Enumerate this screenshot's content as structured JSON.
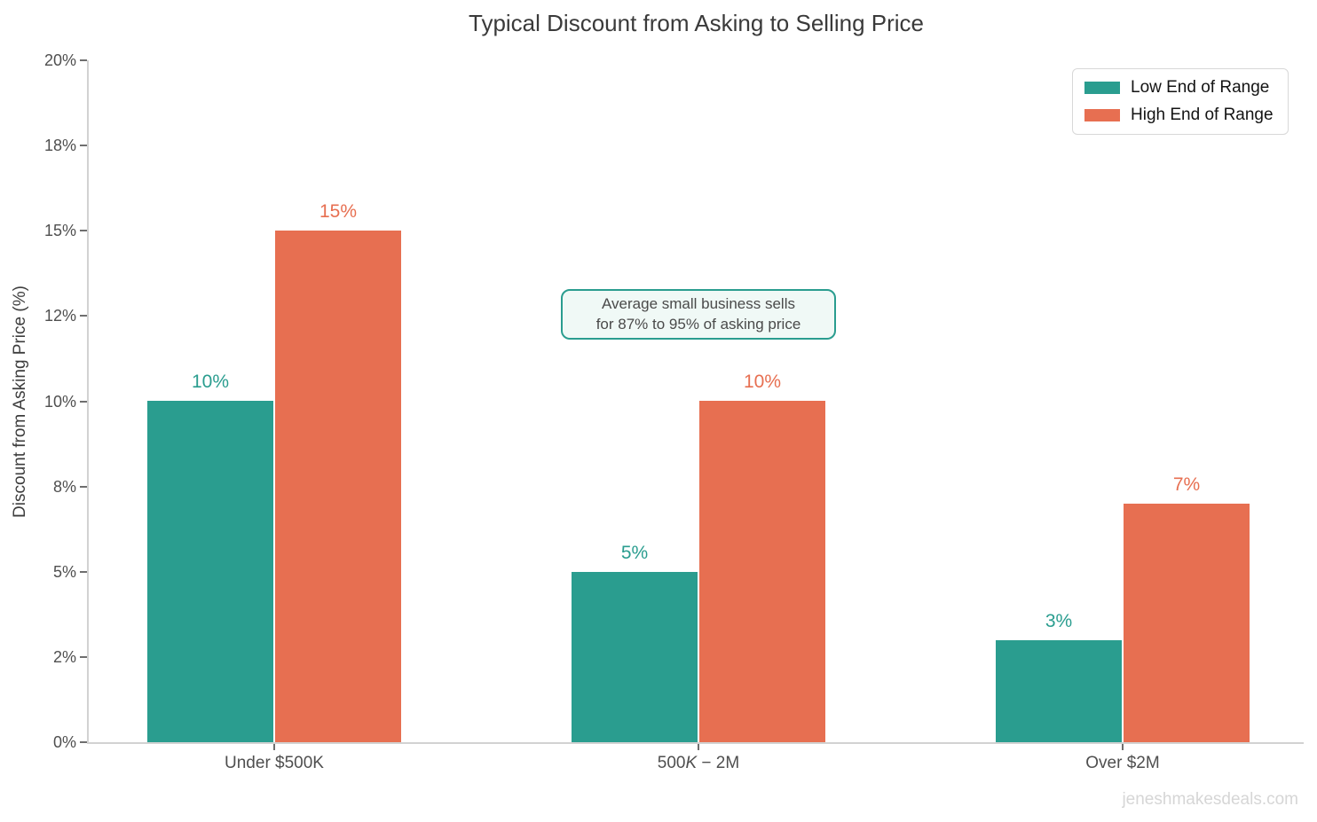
{
  "page": {
    "title": "Typical Discount from Asking to Selling Price",
    "watermark": "jeneshmakesdeals.com"
  },
  "annotation": {
    "line1": "Average small business sells",
    "line2": "for 87% to 95% of asking price",
    "border_color": "#2a9d8f",
    "bg_color": "#f0f9f6"
  },
  "colors": {
    "low_end": "#2a9d8f",
    "high_end": "#e76f51",
    "spine": "#d2d2d2",
    "tick": "#6e6e6e"
  },
  "chart_data": {
    "type": "bar",
    "title": "Typical Discount from Asking to Selling Price",
    "xlabel": "",
    "ylabel": "Discount from Asking Price (%)",
    "ylim": [
      0,
      20
    ],
    "grid": false,
    "legend_position": "upper right",
    "categories": [
      "Under $500K",
      "500K − 2M",
      "Over $2M"
    ],
    "category_segments": [
      [
        {
          "text": "Under $500K",
          "italic": false
        }
      ],
      [
        {
          "text": "500",
          "italic": false
        },
        {
          "text": "K",
          "italic": true
        },
        {
          "text": " − 2M",
          "italic": false
        }
      ],
      [
        {
          "text": "Over $2M",
          "italic": false
        }
      ]
    ],
    "yticks": {
      "values": [
        0,
        2.5,
        5,
        7.5,
        10,
        12.5,
        15,
        17.5,
        20
      ],
      "labels": [
        "0%",
        "2%",
        "5%",
        "8%",
        "10%",
        "12%",
        "15%",
        "18%",
        "20%"
      ]
    },
    "series": [
      {
        "name": "Low End of Range",
        "color": "#2a9d8f",
        "values": [
          10,
          5,
          3
        ],
        "value_labels": [
          "10%",
          "5%",
          "3%"
        ]
      },
      {
        "name": "High End of Range",
        "color": "#e76f51",
        "values": [
          15,
          10,
          7
        ],
        "value_labels": [
          "15%",
          "10%",
          "7%"
        ]
      }
    ],
    "annotation_text": "Average small business sells for 87% to 95% of asking price"
  }
}
